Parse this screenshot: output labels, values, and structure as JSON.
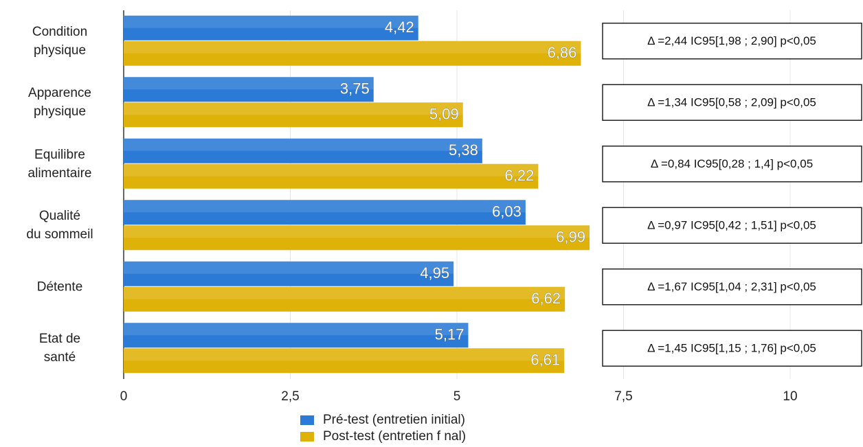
{
  "chart_data": {
    "type": "hbar",
    "categories": [
      "Condition\nphysique",
      "Apparence\nphysique",
      "Equilibre\nalimentaire",
      "Qualité\ndu sommeil",
      "Détente",
      "Etat de\nsanté"
    ],
    "series": [
      {
        "name": "Pré-test (entretien initial)",
        "color": "#2a7ad6",
        "values": [
          4.42,
          3.75,
          5.38,
          6.03,
          4.95,
          5.17
        ],
        "value_labels": [
          "4,42",
          "3,75",
          "5,38",
          "6,03",
          "4,95",
          "5,17"
        ]
      },
      {
        "name": "Post-test (entretien f nal)",
        "color": "#dfb20a",
        "values": [
          6.86,
          5.09,
          6.22,
          6.99,
          6.62,
          6.61
        ],
        "value_labels": [
          "6,86",
          "5,09",
          "6,22",
          "6,99",
          "6,62",
          "6,61"
        ]
      }
    ],
    "xlim": [
      0,
      10
    ],
    "xticks": [
      0,
      {
        "value": 2.5,
        "label": "2,5"
      },
      5,
      {
        "value": 7.5,
        "label": "7,5"
      },
      10
    ],
    "grid": true,
    "legend": "bottom",
    "annotations": [
      "Δ =2,44 IC95[1,98 ; 2,90] p<0,05",
      "Δ =1,34 IC95[0,58 ; 2,09] p<0,05",
      "Δ =0,84 IC95[0,28 ; 1,4] p<0,05",
      "Δ =0,97 IC95[0,42 ; 1,51] p<0,05",
      "Δ =1,67 IC95[1,04 ; 2,31] p<0,05",
      "Δ =1,45 IC95[1,15 ; 1,76] p<0,05"
    ]
  }
}
